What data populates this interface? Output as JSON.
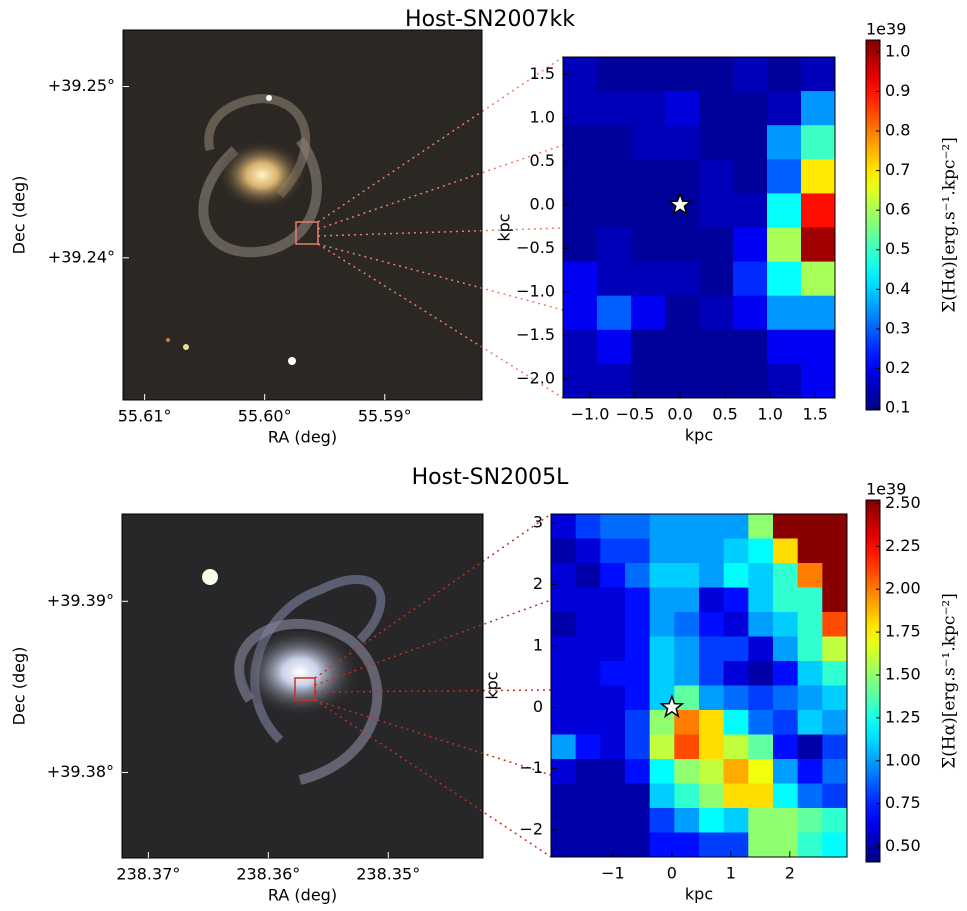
{
  "chart_data": [
    {
      "type": "image",
      "title": "Host-SN2007kk",
      "xlabel": "RA (deg)",
      "ylabel": "Dec (deg)",
      "xlim": [
        55.6118,
        55.5819
      ],
      "ylim": [
        39.2317,
        39.2533
      ],
      "xticks": [
        {
          "value": 55.61,
          "label": "55.61°"
        },
        {
          "value": 55.6,
          "label": "55.60°"
        },
        {
          "value": 55.59,
          "label": "55.59°"
        }
      ],
      "yticks": [
        {
          "value": 39.25,
          "label": "+39.25°"
        },
        {
          "value": 39.24,
          "label": "+39.24°"
        }
      ]
    },
    {
      "type": "heatmap",
      "xlabel": "kpc",
      "ylabel": "kpc",
      "colormap": "jet",
      "xlim": [
        -1.3,
        1.72
      ],
      "ylim": [
        -2.22,
        1.7
      ],
      "xticks": [
        {
          "value": -1,
          "label": "−1.0"
        },
        {
          "value": -0.5,
          "label": "−0.5"
        },
        {
          "value": 0,
          "label": "0.0"
        },
        0.5,
        {
          "value": 1,
          "label": "1.0"
        },
        1.5
      ],
      "yticks": [
        {
          "value": -2,
          "label": "−2.0"
        },
        {
          "value": -1.5,
          "label": "−1.5"
        },
        {
          "value": -1,
          "label": "−1.0"
        },
        {
          "value": -0.5,
          "label": "−0.5"
        },
        {
          "value": 0,
          "label": "0.0"
        },
        0.5,
        {
          "value": 1,
          "label": "1.0"
        },
        1.5
      ],
      "values": [
        [
          0.15,
          0.12,
          0.12,
          0.12,
          0.12,
          0.15,
          0.12,
          0.15
        ],
        [
          0.15,
          0.15,
          0.15,
          0.18,
          0.12,
          0.12,
          0.15,
          0.35
        ],
        [
          0.12,
          0.12,
          0.15,
          0.15,
          0.12,
          0.12,
          0.35,
          0.5
        ],
        [
          0.12,
          0.12,
          0.12,
          0.12,
          0.15,
          0.12,
          0.3,
          0.7
        ],
        [
          0.12,
          0.12,
          0.12,
          0.12,
          0.15,
          0.15,
          0.45,
          0.9
        ],
        [
          0.12,
          0.15,
          0.12,
          0.12,
          0.12,
          0.2,
          0.6,
          1.0
        ],
        [
          0.2,
          0.15,
          0.15,
          0.15,
          0.12,
          0.25,
          0.45,
          0.6
        ],
        [
          0.2,
          0.3,
          0.2,
          0.12,
          0.15,
          0.2,
          0.35,
          0.35
        ],
        [
          0.15,
          0.2,
          0.12,
          0.12,
          0.12,
          0.12,
          0.2,
          0.2
        ],
        [
          0.15,
          0.15,
          0.12,
          0.12,
          0.12,
          0.12,
          0.15,
          0.2
        ]
      ],
      "points": {
        "x": [
          0
        ],
        "y": [
          0
        ]
      },
      "colorbar": {
        "label": "Σ(Hα)[erg.s⁻¹.kpc⁻²]",
        "offset_label": "1e39",
        "clim": [
          0.095,
          1.03
        ],
        "ticks": [
          0.1,
          0.2,
          0.3,
          0.4,
          0.5,
          0.6,
          0.7,
          0.8,
          0.9,
          {
            "value": 1,
            "label": "1.0"
          }
        ]
      }
    },
    {
      "type": "image",
      "title": "Host-SN2005L",
      "xlabel": "RA (deg)",
      "ylabel": "Dec (deg)",
      "xlim": [
        238.3722,
        238.3421
      ],
      "ylim": [
        39.375,
        39.3951
      ],
      "xticks": [
        {
          "value": 238.37,
          "label": "238.37°"
        },
        {
          "value": 238.36,
          "label": "238.36°"
        },
        {
          "value": 238.35,
          "label": "238.35°"
        }
      ],
      "yticks": [
        {
          "value": 39.39,
          "label": "+39.39°"
        },
        {
          "value": 39.38,
          "label": "+39.38°"
        }
      ]
    },
    {
      "type": "heatmap",
      "xlabel": "kpc",
      "ylabel": "kpc",
      "colormap": "jet",
      "xlim": [
        -2.05,
        2.97
      ],
      "ylim": [
        -2.44,
        3.15
      ],
      "xticks": [
        {
          "value": -1,
          "label": "−1"
        },
        0,
        1,
        2
      ],
      "yticks": [
        {
          "value": -2,
          "label": "−2"
        },
        {
          "value": -1,
          "label": "−1"
        },
        0,
        1,
        2,
        3
      ],
      "values": [
        [
          0.6,
          0.8,
          0.9,
          0.9,
          1.0,
          1.0,
          1.0,
          1.0,
          1.5,
          2.5,
          2.5,
          2.5
        ],
        [
          0.5,
          0.6,
          0.8,
          0.8,
          1.0,
          1.0,
          1.0,
          1.1,
          1.2,
          1.8,
          2.5,
          2.5
        ],
        [
          0.6,
          0.5,
          0.7,
          0.9,
          1.1,
          1.1,
          1.0,
          1.2,
          1.1,
          1.3,
          2.0,
          2.5
        ],
        [
          0.6,
          0.6,
          0.6,
          0.7,
          1.0,
          1.0,
          0.6,
          0.7,
          1.1,
          1.3,
          1.3,
          2.5
        ],
        [
          0.5,
          0.6,
          0.6,
          0.7,
          1.0,
          0.9,
          0.7,
          0.6,
          1.0,
          1.1,
          1.3,
          2.1
        ],
        [
          0.6,
          0.6,
          0.6,
          0.7,
          1.1,
          1.0,
          0.8,
          0.8,
          0.6,
          1.0,
          1.3,
          1.6
        ],
        [
          0.6,
          0.6,
          0.7,
          0.7,
          1.1,
          1.0,
          0.8,
          0.6,
          0.5,
          0.7,
          1.1,
          1.3
        ],
        [
          0.6,
          0.6,
          0.6,
          0.7,
          1.1,
          1.4,
          1.0,
          0.9,
          0.8,
          0.9,
          1.0,
          1.1
        ],
        [
          0.6,
          0.6,
          0.6,
          0.8,
          1.5,
          2.0,
          1.8,
          1.2,
          0.9,
          0.8,
          1.1,
          1.0
        ],
        [
          1.0,
          0.7,
          0.6,
          0.8,
          1.6,
          2.1,
          1.8,
          1.6,
          1.4,
          0.7,
          0.5,
          0.8
        ],
        [
          0.6,
          0.5,
          0.5,
          0.7,
          1.2,
          1.5,
          1.6,
          1.9,
          1.7,
          1.0,
          0.7,
          0.9
        ],
        [
          0.5,
          0.5,
          0.5,
          0.5,
          1.1,
          1.3,
          1.5,
          1.8,
          1.8,
          1.2,
          0.9,
          0.8
        ],
        [
          0.5,
          0.5,
          0.5,
          0.5,
          0.8,
          1.0,
          1.2,
          1.1,
          1.5,
          1.5,
          1.4,
          1.3
        ],
        [
          0.5,
          0.5,
          0.5,
          0.5,
          0.7,
          0.7,
          0.8,
          0.8,
          1.5,
          1.5,
          1.3,
          1.2
        ]
      ],
      "points": {
        "x": [
          0
        ],
        "y": [
          0
        ]
      },
      "colorbar": {
        "label": "Σ(Hα)[erg.s⁻¹.kpc⁻²]",
        "offset_label": "1e39",
        "clim": [
          0.41,
          2.52
        ],
        "ticks": [
          {
            "value": 0.5,
            "label": "0.50"
          },
          0.75,
          {
            "value": 1,
            "label": "1.00"
          },
          1.25,
          {
            "value": 1.5,
            "label": "1.50"
          },
          1.75,
          {
            "value": 2,
            "label": "2.00"
          },
          2.25,
          {
            "value": 2.5,
            "label": "2.50"
          }
        ]
      }
    }
  ]
}
